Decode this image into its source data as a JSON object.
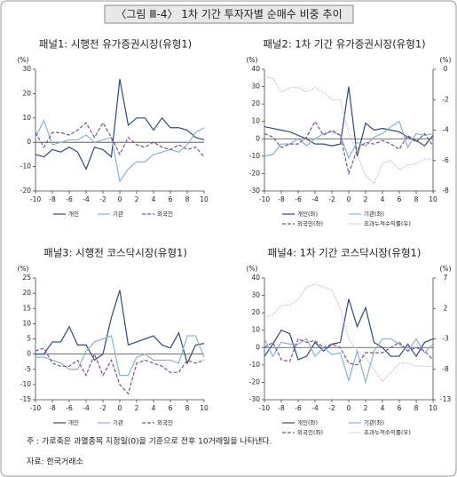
{
  "header": {
    "title": "〈그림 Ⅲ-4〉 1차 기간 투자자별 순매수 비중 추이"
  },
  "notes": [
    "주 : 가로축은 과열종목 지정일(0)을 기준으로 전후 10거래일을 나타낸다.",
    "자료: 한국거래소"
  ],
  "chart_data": [
    {
      "type": "line",
      "title": "패널1: 시행전 유가증권시장(유형1)",
      "y_label": "(%)",
      "x": [
        -10,
        -9,
        -8,
        -7,
        -6,
        -5,
        -4,
        -3,
        -2,
        -1,
        0,
        1,
        2,
        3,
        4,
        5,
        6,
        7,
        8,
        9,
        10
      ],
      "xlim": [
        -10,
        10
      ],
      "xticks": [
        -10,
        -8,
        -6,
        -4,
        -2,
        0,
        2,
        4,
        6,
        8,
        10
      ],
      "ylim": [
        -20,
        30
      ],
      "yticks": [
        -20,
        -10,
        0,
        10,
        20,
        30
      ],
      "series": [
        {
          "name": "개인",
          "color": "#2e4a7a",
          "style": "solid",
          "values": [
            -5,
            -6,
            -3,
            -4,
            -2,
            -4,
            -11,
            -2,
            -3,
            -6,
            26,
            7,
            10,
            10,
            5,
            10,
            6,
            6,
            5,
            2,
            1
          ]
        },
        {
          "name": "기관",
          "color": "#86b3d9",
          "style": "solid",
          "values": [
            2,
            9,
            -1,
            0,
            1,
            1,
            3,
            0,
            1,
            2,
            -16,
            -11,
            -8,
            -8,
            -5,
            -4,
            -3,
            -4,
            -1,
            4,
            6
          ]
        },
        {
          "name": "외국인",
          "color": "#7b4f9e",
          "style": "dashed",
          "values": [
            4,
            -2,
            4,
            4,
            3,
            5,
            8,
            2,
            8,
            2,
            -5,
            2,
            -1,
            -2,
            0,
            -2,
            -3,
            -1,
            -3,
            -2,
            -6
          ]
        }
      ]
    },
    {
      "type": "line",
      "title": "패널2: 1차 기간 유가증권시장(유형1)",
      "y_label": "(%)",
      "y2_label": "(%)",
      "x": [
        -10,
        -9,
        -8,
        -7,
        -6,
        -5,
        -4,
        -3,
        -2,
        -1,
        0,
        1,
        2,
        3,
        4,
        5,
        6,
        7,
        8,
        9,
        10
      ],
      "xlim": [
        -10,
        10
      ],
      "xticks": [
        -10,
        -8,
        -6,
        -4,
        -2,
        0,
        2,
        4,
        6,
        8,
        10
      ],
      "ylim": [
        -30,
        40
      ],
      "yticks": [
        -30,
        -20,
        -10,
        0,
        10,
        20,
        30,
        40
      ],
      "y2lim": [
        -8,
        0
      ],
      "y2ticks": [
        -8,
        -6,
        -4,
        -2,
        0
      ],
      "series": [
        {
          "name": "개인(좌)",
          "color": "#2e4a7a",
          "style": "solid",
          "values": [
            7,
            6,
            5,
            4,
            2,
            0,
            -3,
            -3,
            -4,
            -3,
            30,
            -10,
            9,
            5,
            6,
            5,
            4,
            1,
            -1,
            -4,
            2
          ]
        },
        {
          "name": "기관(좌)",
          "color": "#86b3d9",
          "style": "solid",
          "values": [
            -10,
            -9,
            -3,
            -3,
            0,
            -4,
            0,
            3,
            4,
            2,
            -11,
            -2,
            -4,
            1,
            3,
            7,
            10,
            -5,
            3,
            2,
            3
          ]
        },
        {
          "name": "외국인(좌)",
          "color": "#7b4f9e",
          "style": "dashed",
          "values": [
            3,
            1,
            -5,
            -3,
            -3,
            1,
            10,
            2,
            5,
            2,
            -20,
            -6,
            -2,
            -3,
            -1,
            -3,
            -6,
            2,
            -2,
            3,
            -4
          ]
        },
        {
          "name": "초과누적수익률(우)",
          "color": "#c7b3e0",
          "style": "dotted",
          "axis": "y2",
          "values": [
            -0.5,
            -0.6,
            -1.5,
            -1.2,
            -1.2,
            -1.5,
            -1.2,
            -1.5,
            -2,
            -2,
            -4.2,
            -5.5,
            -7,
            -7.5,
            -6.2,
            -6,
            -6.6,
            -6.3,
            -6.2,
            -5.9,
            -5.9
          ]
        }
      ]
    },
    {
      "type": "line",
      "title": "패널3: 시행전 코스닥시장(유형1)",
      "y_label": "(%)",
      "x": [
        -10,
        -9,
        -8,
        -7,
        -6,
        -5,
        -4,
        -3,
        -2,
        -1,
        0,
        1,
        2,
        3,
        4,
        5,
        6,
        7,
        8,
        9,
        10
      ],
      "xlim": [
        -10,
        10
      ],
      "xticks": [
        -10,
        -8,
        -6,
        -4,
        -2,
        0,
        2,
        4,
        6,
        8,
        10
      ],
      "ylim": [
        -15,
        25
      ],
      "yticks": [
        -15,
        -10,
        -5,
        0,
        5,
        10,
        15,
        20,
        25
      ],
      "series": [
        {
          "name": "개인",
          "color": "#2e4a7a",
          "style": "solid",
          "values": [
            0,
            0,
            4,
            4,
            9,
            3,
            3,
            -2,
            0,
            12,
            21,
            3,
            4,
            5,
            6,
            3,
            2,
            7,
            -3,
            3,
            3.5
          ]
        },
        {
          "name": "기관",
          "color": "#86b3d9",
          "style": "solid",
          "values": [
            -1,
            -1,
            -2,
            -3,
            -5,
            -5,
            1,
            4,
            5,
            6,
            -7,
            -7,
            -1,
            0,
            -2,
            -2,
            -2,
            -3,
            6,
            6,
            -1
          ]
        },
        {
          "name": "외국인",
          "color": "#7b4f9e",
          "style": "dashed",
          "values": [
            1,
            2,
            -3,
            -4,
            -4,
            -2,
            -7,
            0,
            -7,
            -2,
            -10,
            -13,
            -3,
            -2,
            -3,
            -4,
            -6,
            -6,
            -2,
            -3,
            -2
          ]
        }
      ]
    },
    {
      "type": "line",
      "title": "패널4: 1차 기간 코스닥시장(유형1)",
      "y_label": "(%)",
      "y2_label": "(%)",
      "x": [
        -10,
        -9,
        -8,
        -7,
        -6,
        -5,
        -4,
        -3,
        -2,
        -1,
        0,
        1,
        2,
        3,
        4,
        5,
        6,
        7,
        8,
        9,
        10
      ],
      "xlim": [
        -10,
        10
      ],
      "xticks": [
        -10,
        -8,
        -6,
        -4,
        -2,
        0,
        2,
        4,
        6,
        8,
        10
      ],
      "ylim": [
        -30,
        40
      ],
      "yticks": [
        -30,
        -20,
        -10,
        0,
        10,
        20,
        30,
        40
      ],
      "y2lim": [
        -13,
        7
      ],
      "y2ticks": [
        -13,
        -8,
        -3,
        2,
        7
      ],
      "series": [
        {
          "name": "개인(좌)",
          "color": "#2e4a7a",
          "style": "solid",
          "values": [
            -5,
            2,
            10,
            8,
            -7,
            -5,
            3,
            -2,
            2,
            3,
            28,
            12,
            23,
            3,
            0,
            -5,
            -5,
            2,
            -5,
            3,
            5
          ]
        },
        {
          "name": "기관(좌)",
          "color": "#86b3d9",
          "style": "solid",
          "values": [
            5,
            -5,
            3,
            2,
            2,
            5,
            -5,
            0,
            -4,
            -3,
            -19,
            -2,
            -20,
            -2,
            5,
            5,
            2,
            -2,
            5,
            -3,
            2
          ]
        },
        {
          "name": "외국인(좌)",
          "color": "#7b4f9e",
          "style": "dashed",
          "values": [
            0,
            3,
            -7,
            -8,
            5,
            3,
            4,
            0,
            2,
            0,
            -9,
            -10,
            -3,
            -3,
            -3,
            0,
            3,
            -2,
            0,
            -2,
            -7
          ]
        },
        {
          "name": "초과누적수익률(우)",
          "color": "#c7b3e0",
          "style": "dotted",
          "axis": "y2",
          "values": [
            0.5,
            1,
            2.5,
            2.5,
            3.5,
            5.5,
            6,
            5.5,
            5,
            2,
            -3,
            -5,
            -6,
            -8,
            -10,
            -8.5,
            -7,
            -7,
            -7.5,
            -7.5,
            -7.5
          ]
        }
      ]
    }
  ]
}
